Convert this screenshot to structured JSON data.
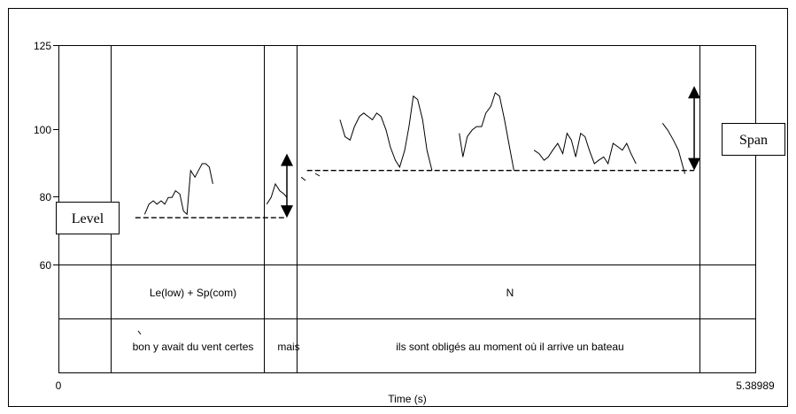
{
  "chart_data": {
    "type": "line",
    "xlabel": "Time (s)",
    "x_ticks": [
      "0",
      "5.38989"
    ],
    "xlim": [
      0,
      5.38989
    ],
    "y_ticks": [
      "125",
      "100",
      "80",
      "60"
    ],
    "ylim": [
      60,
      125
    ],
    "annotations": {
      "level_label": "Level",
      "span_label": "Span"
    },
    "tiers": [
      {
        "name": "annotation",
        "intervals": [
          {
            "start": 0.0,
            "end": 0.73,
            "text": ""
          },
          {
            "start": 0.73,
            "end": 2.92,
            "text": "Le(low) + Sp(com)"
          },
          {
            "start": 2.92,
            "end": 4.72,
            "text": "N"
          },
          {
            "start": 4.72,
            "end": 5.38989,
            "text": ""
          }
        ]
      },
      {
        "name": "words",
        "intervals": [
          {
            "start": 0.0,
            "end": 0.73,
            "text": ""
          },
          {
            "start": 0.73,
            "end": 2.86,
            "text": "bon y avait du vent certes"
          },
          {
            "start": 2.86,
            "end": 3.32,
            "text": "mais"
          },
          {
            "start": 3.32,
            "end": 8.92,
            "text": "ils sont obligés au moment où il arrive un bateau"
          },
          {
            "start": 8.92,
            "end": 9.7,
            "text": ""
          }
        ]
      }
    ],
    "boundaries": [
      0.73,
      2.86,
      3.32,
      8.92
    ],
    "baselines": [
      {
        "name": "level-baseline",
        "x_start": 1.07,
        "x_end": 3.18,
        "y": 74
      },
      {
        "name": "span-baseline",
        "x_start": 3.46,
        "x_end": 8.85,
        "y": 88
      }
    ],
    "arrows": [
      {
        "name": "mais-span-arrow",
        "x": 3.18,
        "y_from": 74,
        "y_to": 93
      },
      {
        "name": "span-arrow",
        "x": 8.85,
        "y_from": 88,
        "y_to": 113
      }
    ],
    "pitch_segments": [
      {
        "name": "f0-seg-1",
        "points": [
          [
            1.2,
            75
          ],
          [
            1.26,
            78
          ],
          [
            1.32,
            79
          ],
          [
            1.37,
            78
          ],
          [
            1.43,
            79
          ],
          [
            1.48,
            78
          ],
          [
            1.53,
            80
          ],
          [
            1.58,
            80
          ],
          [
            1.63,
            82
          ],
          [
            1.69,
            81
          ],
          [
            1.74,
            76
          ],
          [
            1.79,
            75
          ],
          [
            1.84,
            88
          ],
          [
            1.9,
            86
          ],
          [
            1.95,
            88
          ],
          [
            2.0,
            90
          ],
          [
            2.05,
            90
          ],
          [
            2.1,
            89
          ],
          [
            2.15,
            84
          ]
        ]
      },
      {
        "name": "f0-seg-2",
        "points": [
          [
            2.9,
            78
          ],
          [
            2.96,
            80
          ],
          [
            3.02,
            84
          ],
          [
            3.08,
            82
          ],
          [
            3.14,
            81
          ],
          [
            3.18,
            80
          ]
        ]
      },
      {
        "name": "f0-seg-3",
        "points": [
          [
            3.38,
            86
          ],
          [
            3.44,
            85
          ]
        ]
      },
      {
        "name": "f0-seg-4",
        "points": [
          [
            3.92,
            103
          ],
          [
            3.99,
            98
          ],
          [
            4.06,
            97
          ],
          [
            4.12,
            101
          ],
          [
            4.19,
            104
          ],
          [
            4.25,
            105
          ],
          [
            4.31,
            104
          ],
          [
            4.37,
            103
          ],
          [
            4.43,
            105
          ],
          [
            4.49,
            104
          ],
          [
            4.56,
            100
          ],
          [
            4.62,
            95
          ],
          [
            4.69,
            91
          ],
          [
            4.75,
            89
          ],
          [
            4.82,
            94
          ],
          [
            4.88,
            101
          ],
          [
            4.94,
            110
          ],
          [
            5.0,
            109
          ],
          [
            5.07,
            103
          ],
          [
            5.13,
            94
          ],
          [
            5.2,
            88
          ]
        ]
      },
      {
        "name": "f0-seg-5",
        "points": [
          [
            5.58,
            99
          ],
          [
            5.63,
            92
          ],
          [
            5.69,
            98
          ],
          [
            5.76,
            100
          ],
          [
            5.82,
            101
          ],
          [
            5.89,
            101
          ],
          [
            5.95,
            105
          ],
          [
            6.02,
            107
          ],
          [
            6.08,
            111
          ],
          [
            6.14,
            110
          ],
          [
            6.21,
            103
          ],
          [
            6.27,
            96
          ],
          [
            6.34,
            88
          ]
        ]
      },
      {
        "name": "f0-seg-6",
        "points": [
          [
            6.62,
            94
          ],
          [
            6.69,
            93
          ],
          [
            6.76,
            91
          ],
          [
            6.82,
            92
          ],
          [
            6.88,
            94
          ],
          [
            6.95,
            96
          ],
          [
            7.02,
            93
          ],
          [
            7.08,
            99
          ],
          [
            7.14,
            97
          ],
          [
            7.2,
            92
          ],
          [
            7.27,
            99
          ],
          [
            7.33,
            98
          ],
          [
            7.39,
            94
          ],
          [
            7.46,
            90
          ],
          [
            7.52,
            91
          ],
          [
            7.59,
            92
          ],
          [
            7.65,
            90
          ],
          [
            7.72,
            96
          ],
          [
            7.79,
            95
          ],
          [
            7.85,
            94
          ],
          [
            7.91,
            96
          ],
          [
            7.97,
            93
          ],
          [
            8.04,
            90
          ]
        ]
      },
      {
        "name": "f0-seg-7",
        "points": [
          [
            8.41,
            102
          ],
          [
            8.48,
            100
          ],
          [
            8.56,
            97
          ],
          [
            8.63,
            94
          ],
          [
            8.72,
            87
          ]
        ]
      }
    ],
    "grid": false
  }
}
